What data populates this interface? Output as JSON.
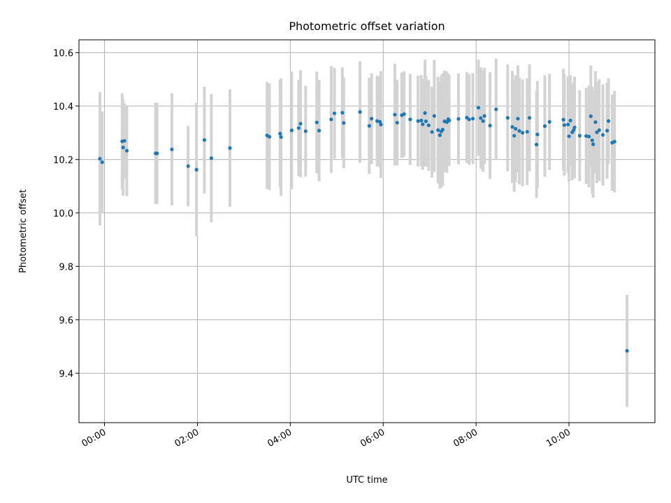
{
  "chart_data": {
    "type": "scatter",
    "title": "Photometric offset variation",
    "xlabel": "UTC time",
    "ylabel": "Photometric offset",
    "x_ticks": [
      "00:00",
      "02:00",
      "04:00",
      "06:00",
      "08:00",
      "10:00"
    ],
    "y_ticks": [
      "9.4",
      "9.6",
      "9.8",
      "10.0",
      "10.2",
      "10.4",
      "10.6"
    ],
    "xlim": [
      -0.55,
      11.85
    ],
    "ylim": [
      9.215,
      10.648
    ],
    "grid": true,
    "colors": {
      "point": "#1f77b4",
      "errorbar": "#d3d3d3",
      "grid": "#b0b0b0"
    },
    "series": [
      {
        "x": [
          -0.1,
          -0.05,
          0.38,
          0.4,
          0.43,
          0.48,
          1.1,
          1.13,
          1.45,
          1.8,
          1.98,
          2.15,
          2.3,
          2.7,
          3.5,
          3.55,
          3.78,
          3.8,
          4.03,
          4.18,
          4.22,
          4.33,
          4.57,
          4.62,
          4.88,
          4.95,
          5.12,
          5.15,
          5.5,
          5.7,
          5.75,
          5.87,
          5.93,
          5.95,
          6.25,
          6.3,
          6.4,
          6.45,
          6.58,
          6.75,
          6.82,
          6.85,
          6.9,
          6.92,
          6.98,
          7.05,
          7.1,
          7.18,
          7.22,
          7.25,
          7.28,
          7.32,
          7.37,
          7.4,
          7.42,
          7.62,
          7.8,
          7.85,
          7.93,
          8.05,
          8.1,
          8.15,
          8.18,
          8.3,
          8.43,
          8.68,
          8.78,
          8.82,
          8.85,
          8.9,
          8.93,
          9.0,
          9.1,
          9.15,
          9.3,
          9.32,
          9.48,
          9.58,
          9.88,
          9.9,
          9.98,
          10.0,
          10.03,
          10.07,
          10.1,
          10.12,
          10.23,
          10.37,
          10.43,
          10.47,
          10.5,
          10.52,
          10.57,
          10.6,
          10.65,
          10.73,
          10.82,
          10.85,
          10.93,
          10.98,
          11.25
        ],
        "y": [
          10.203,
          10.19,
          10.268,
          10.245,
          10.27,
          10.233,
          10.223,
          10.223,
          10.238,
          10.175,
          10.162,
          10.273,
          10.205,
          10.243,
          10.29,
          10.285,
          10.297,
          10.284,
          10.309,
          10.318,
          10.334,
          10.306,
          10.339,
          10.308,
          10.35,
          10.373,
          10.375,
          10.337,
          10.378,
          10.326,
          10.353,
          10.344,
          10.341,
          10.331,
          10.368,
          10.338,
          10.366,
          10.37,
          10.35,
          10.344,
          10.346,
          10.332,
          10.374,
          10.343,
          10.328,
          10.303,
          10.363,
          10.31,
          10.291,
          10.305,
          10.312,
          10.343,
          10.34,
          10.351,
          10.346,
          10.352,
          10.357,
          10.35,
          10.353,
          10.394,
          10.355,
          10.344,
          10.363,
          10.327,
          10.388,
          10.356,
          10.322,
          10.289,
          10.315,
          10.353,
          10.307,
          10.3,
          10.304,
          10.356,
          10.256,
          10.294,
          10.325,
          10.341,
          10.349,
          10.329,
          10.331,
          10.287,
          10.346,
          10.302,
          10.31,
          10.32,
          10.289,
          10.288,
          10.286,
          10.362,
          10.272,
          10.257,
          10.34,
          10.302,
          10.31,
          10.292,
          10.308,
          10.344,
          10.263,
          10.267,
          9.484
        ],
        "err": [
          0.25,
          0.19,
          0.18,
          0.18,
          0.14,
          0.17,
          0.19,
          0.19,
          0.21,
          0.15,
          0.25,
          0.2,
          0.24,
          0.22,
          0.2,
          0.2,
          0.2,
          0.22,
          0.22,
          0.18,
          0.2,
          0.17,
          0.19,
          0.19,
          0.2,
          0.17,
          0.17,
          0.17,
          0.19,
          0.18,
          0.17,
          0.17,
          0.17,
          0.2,
          0.19,
          0.16,
          0.16,
          0.16,
          0.17,
          0.17,
          0.17,
          0.17,
          0.2,
          0.17,
          0.17,
          0.17,
          0.21,
          0.2,
          0.2,
          0.21,
          0.21,
          0.19,
          0.19,
          0.17,
          0.17,
          0.17,
          0.17,
          0.17,
          0.17,
          0.18,
          0.19,
          0.19,
          0.18,
          0.2,
          0.19,
          0.2,
          0.21,
          0.21,
          0.2,
          0.2,
          0.2,
          0.2,
          0.2,
          0.2,
          0.2,
          0.2,
          0.19,
          0.18,
          0.19,
          0.19,
          0.18,
          0.17,
          0.17,
          0.18,
          0.18,
          0.19,
          0.17,
          0.18,
          0.19,
          0.19,
          0.2,
          0.2,
          0.19,
          0.19,
          0.19,
          0.19,
          0.18,
          0.16,
          0.18,
          0.19,
          0.21
        ]
      }
    ]
  }
}
